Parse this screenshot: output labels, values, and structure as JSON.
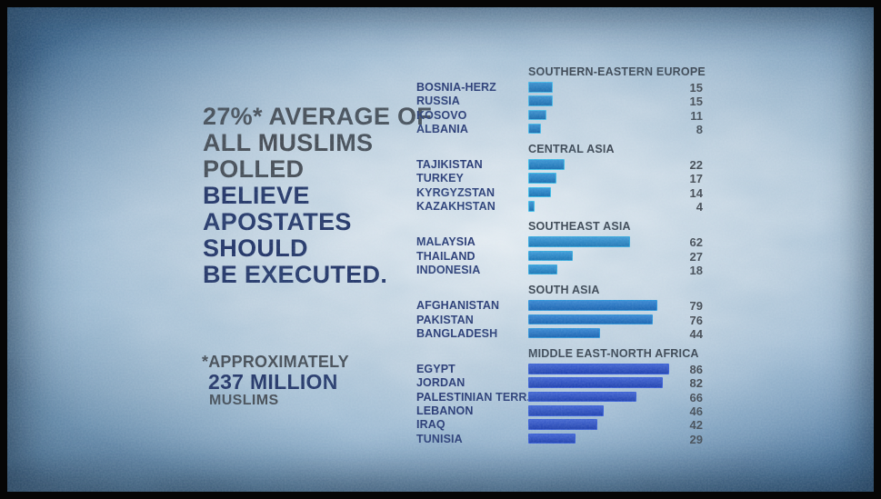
{
  "headline": {
    "lines": [
      {
        "text": "27%* AVERAGE OF",
        "style": "gray"
      },
      {
        "text": "ALL MUSLIMS",
        "style": "gray"
      },
      {
        "text": "POLLED",
        "style": "gray"
      },
      {
        "text": "BELIEVE",
        "style": "navy"
      },
      {
        "text": "APOSTATES",
        "style": "navy"
      },
      {
        "text": "SHOULD",
        "style": "navy"
      },
      {
        "text": "BE EXECUTED.",
        "style": "navy"
      }
    ]
  },
  "footnote": {
    "line1": "*APPROXIMATELY",
    "line2": "237 MILLION",
    "line3": "MUSLIMS"
  },
  "chart_data": {
    "type": "bar",
    "orientation": "horizontal",
    "unit": "percent",
    "xlim": [
      0,
      100
    ],
    "grid": false,
    "legend": false,
    "value_labels": "right-aligned numbers per bar",
    "sections": [
      {
        "region": "SOUTHERN-EASTERN EUROPE",
        "bar_fill": "#0e79c8",
        "bar_border": "#3cb9ea",
        "countries": [
          "BOSNIA-HERZ",
          "RUSSIA",
          "KOSOVO",
          "ALBANIA"
        ],
        "values": [
          15,
          15,
          11,
          8
        ]
      },
      {
        "region": "CENTRAL ASIA",
        "bar_fill": "#0f7fce",
        "bar_border": "#32bdea",
        "countries": [
          "TAJIKISTAN",
          "TURKEY",
          "KYRGYZSTAN",
          "KAZAKHSTAN"
        ],
        "values": [
          22,
          17,
          14,
          4
        ]
      },
      {
        "region": "SOUTHEAST ASIA",
        "bar_fill": "#1287d3",
        "bar_border": "#2aa9e0",
        "countries": [
          "MALAYSIA",
          "THAILAND",
          "INDONESIA"
        ],
        "values": [
          62,
          27,
          18
        ]
      },
      {
        "region": "SOUTH ASIA",
        "bar_fill": "#0d6ecd",
        "bar_border": "#2292dc",
        "countries": [
          "AFGHANISTAN",
          "PAKISTAN",
          "BANGLADESH"
        ],
        "values": [
          79,
          76,
          44
        ]
      },
      {
        "region": "MIDDLE EAST-NORTH AFRICA",
        "bar_fill": "#1840cb",
        "bar_border": "#2f55d8",
        "countries": [
          "EGYPT",
          "JORDAN",
          "PALESTINIAN TERR.",
          "LEBANON",
          "IRAQ",
          "TUNISIA"
        ],
        "values": [
          86,
          82,
          66,
          46,
          42,
          29
        ]
      }
    ]
  },
  "colors": {
    "navy_text": "#15265c",
    "gray_text": "#3c4047",
    "region_header_text": "#2f3742",
    "country_label_text": "#1b2c6a",
    "value_text": "#3a3e45",
    "background_light": "#d3dde6",
    "background_edge": "#4a7dab",
    "frame": "#060606"
  }
}
